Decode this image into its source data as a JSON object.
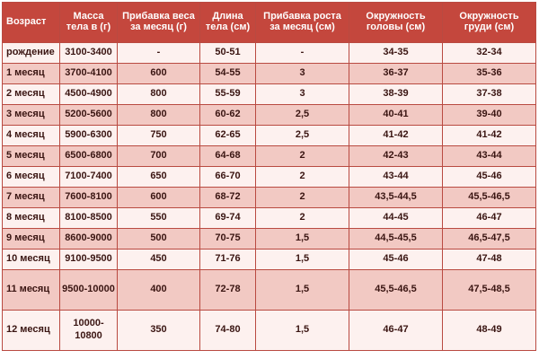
{
  "table": {
    "headers": [
      "Возраст",
      "Масса тела в (г)",
      "Прибавка веса за месяц (г)",
      "Длина тела (см)",
      "Прибавка роста за месяц (см)",
      "Окружность головы (см)",
      "Окружность груди (см)"
    ],
    "rows": [
      [
        "рождение",
        "3100-3400",
        "-",
        "50-51",
        "-",
        "34-35",
        "32-34"
      ],
      [
        "1 месяц",
        "3700-4100",
        "600",
        "54-55",
        "3",
        "36-37",
        "35-36"
      ],
      [
        "2 месяц",
        "4500-4900",
        "800",
        "55-59",
        "3",
        "38-39",
        "37-38"
      ],
      [
        "3 месяц",
        "5200-5600",
        "800",
        "60-62",
        "2,5",
        "40-41",
        "39-40"
      ],
      [
        "4 месяц",
        "5900-6300",
        "750",
        "62-65",
        "2,5",
        "41-42",
        "41-42"
      ],
      [
        "5 месяц",
        "6500-6800",
        "700",
        "64-68",
        "2",
        "42-43",
        "43-44"
      ],
      [
        "6 месяц",
        "7100-7400",
        "650",
        "66-70",
        "2",
        "43-44",
        "45-46"
      ],
      [
        "7 месяц",
        "7600-8100",
        "600",
        "68-72",
        "2",
        "43,5-44,5",
        "45,5-46,5"
      ],
      [
        "8 месяц",
        "8100-8500",
        "550",
        "69-74",
        "2",
        "44-45",
        "46-47"
      ],
      [
        "9 месяц",
        "8600-9000",
        "500",
        "70-75",
        "1,5",
        "44,5-45,5",
        "46,5-47,5"
      ],
      [
        "10 месяц",
        "9100-9500",
        "450",
        "71-76",
        "1,5",
        "45-46",
        "47-48"
      ],
      [
        "11 месяц",
        "9500-10000",
        "400",
        "72-78",
        "1,5",
        "45,5-46,5",
        "47,5-48,5"
      ],
      [
        "12 месяц",
        "10000-10800",
        "350",
        "74-80",
        "1,5",
        "46-47",
        "48-49"
      ]
    ]
  },
  "colors": {
    "header_bg": "#c4473d",
    "row_light": "#fdf1ef",
    "row_shade": "#f2c9c3",
    "border": "#b94a41",
    "text": "#3a1512"
  }
}
